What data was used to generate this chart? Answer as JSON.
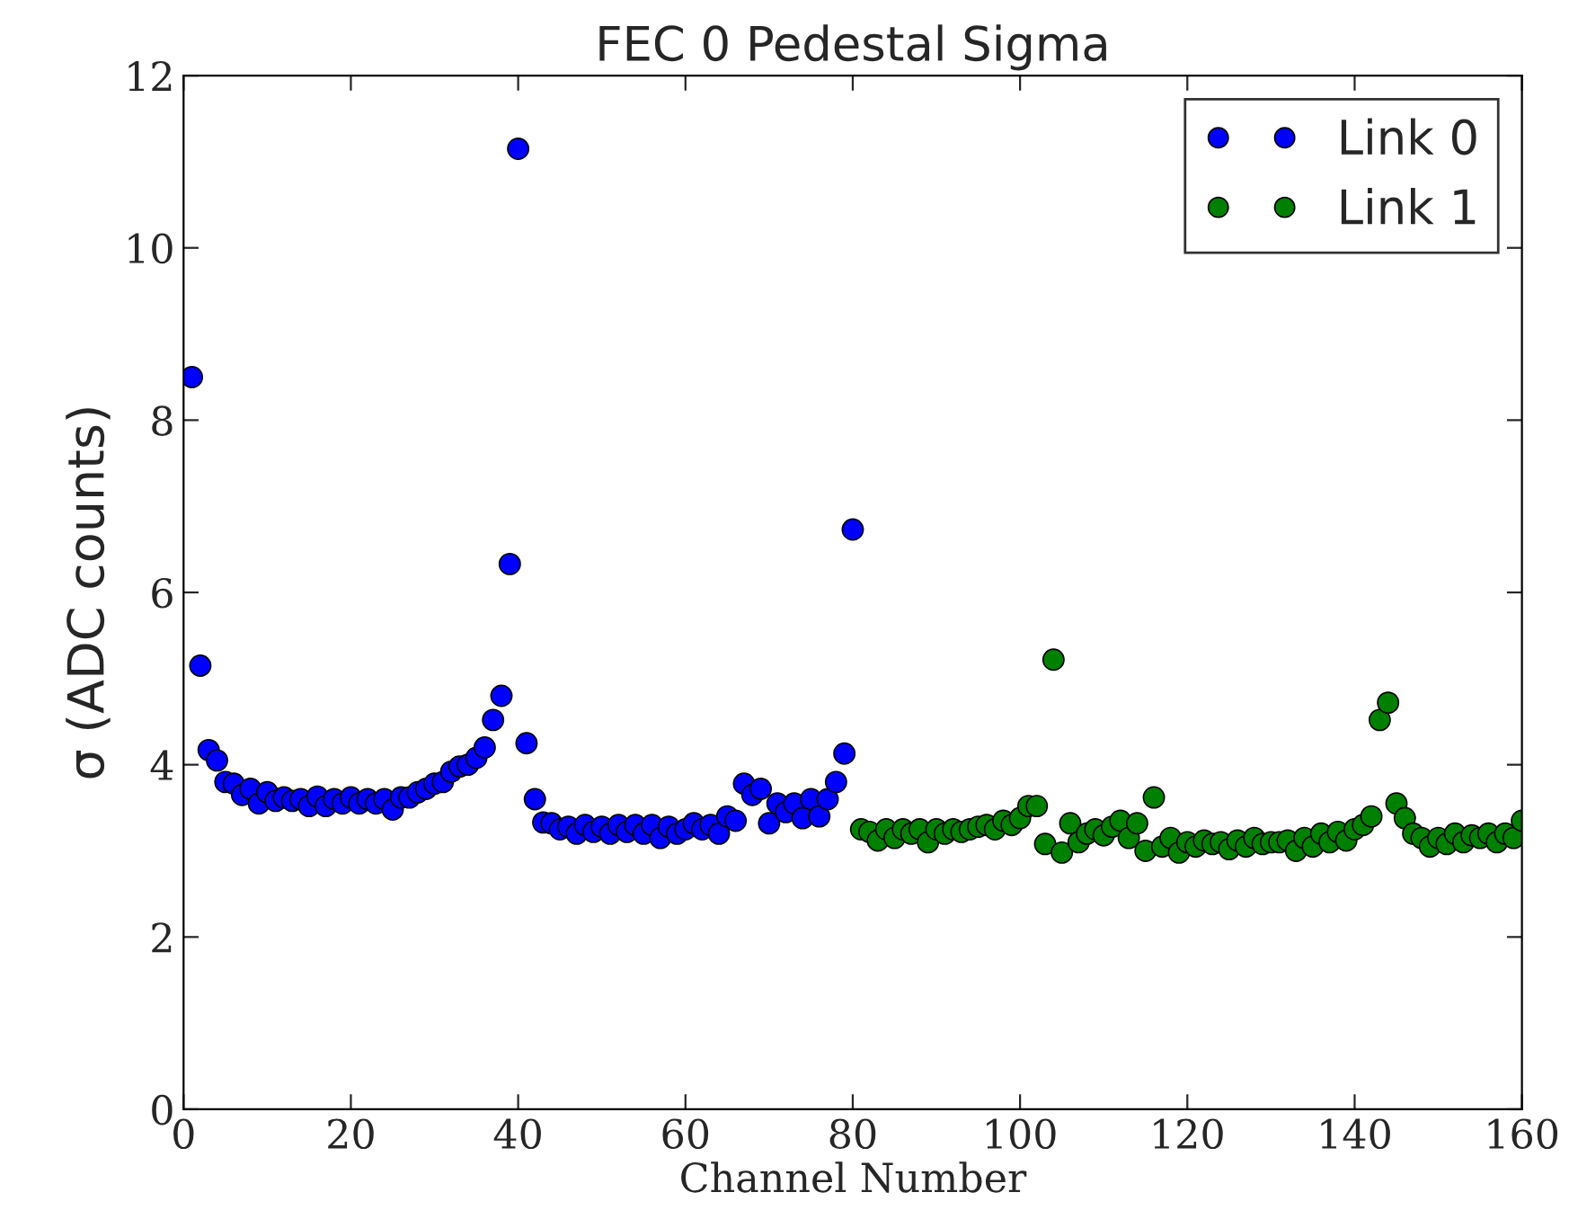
{
  "chart_data": {
    "type": "scatter",
    "title": "FEC 0 Pedestal Sigma",
    "xlabel": "Channel Number",
    "ylabel": "σ (ADC counts)",
    "xlim": [
      0,
      160
    ],
    "xticks": [
      0,
      20,
      40,
      60,
      80,
      100,
      120,
      140,
      160
    ],
    "ylim": [
      0,
      12
    ],
    "yticks": [
      0,
      2,
      4,
      6,
      8,
      10,
      12
    ],
    "grid": false,
    "legend": "top right",
    "marker": "circle",
    "series": [
      {
        "name": "Link 0",
        "color": "#0000ff",
        "x": [
          1,
          2,
          3,
          4,
          5,
          6,
          7,
          8,
          9,
          10,
          11,
          12,
          13,
          14,
          15,
          16,
          17,
          18,
          19,
          20,
          21,
          22,
          23,
          24,
          25,
          26,
          27,
          28,
          29,
          30,
          31,
          32,
          33,
          34,
          35,
          36,
          37,
          38,
          39,
          40,
          41,
          42,
          43,
          44,
          45,
          46,
          47,
          48,
          49,
          50,
          51,
          52,
          53,
          54,
          55,
          56,
          57,
          58,
          59,
          60,
          61,
          62,
          63,
          64,
          65,
          66,
          67,
          68,
          69,
          70,
          71,
          72,
          73,
          74,
          75,
          76,
          77,
          78,
          79,
          80
        ],
        "values": [
          8.5,
          5.15,
          4.17,
          4.05,
          3.8,
          3.78,
          3.65,
          3.72,
          3.55,
          3.68,
          3.58,
          3.62,
          3.58,
          3.6,
          3.52,
          3.63,
          3.52,
          3.6,
          3.55,
          3.62,
          3.55,
          3.6,
          3.55,
          3.6,
          3.48,
          3.62,
          3.62,
          3.68,
          3.72,
          3.78,
          3.8,
          3.92,
          3.98,
          4.0,
          4.08,
          4.2,
          4.52,
          4.8,
          6.33,
          11.15,
          4.25,
          3.6,
          3.33,
          3.32,
          3.25,
          3.28,
          3.2,
          3.3,
          3.22,
          3.28,
          3.2,
          3.3,
          3.22,
          3.3,
          3.2,
          3.3,
          3.15,
          3.28,
          3.2,
          3.25,
          3.32,
          3.25,
          3.3,
          3.2,
          3.4,
          3.35,
          3.78,
          3.65,
          3.72,
          3.32,
          3.55,
          3.45,
          3.55,
          3.38,
          3.6,
          3.4,
          3.6,
          3.8,
          4.13,
          6.73
        ]
      },
      {
        "name": "Link 1",
        "color": "#008000",
        "x": [
          81,
          82,
          83,
          84,
          85,
          86,
          87,
          88,
          89,
          90,
          91,
          92,
          93,
          94,
          95,
          96,
          97,
          98,
          99,
          100,
          101,
          102,
          103,
          104,
          105,
          106,
          107,
          108,
          109,
          110,
          111,
          112,
          113,
          114,
          115,
          116,
          117,
          118,
          119,
          120,
          121,
          122,
          123,
          124,
          125,
          126,
          127,
          128,
          129,
          130,
          131,
          132,
          133,
          134,
          135,
          136,
          137,
          138,
          139,
          140,
          141,
          142,
          143,
          144,
          145,
          146,
          147,
          148,
          149,
          150,
          151,
          152,
          153,
          154,
          155,
          156,
          157,
          158,
          159,
          160
        ],
        "values": [
          3.25,
          3.22,
          3.12,
          3.25,
          3.15,
          3.25,
          3.2,
          3.25,
          3.1,
          3.25,
          3.2,
          3.25,
          3.22,
          3.25,
          3.28,
          3.3,
          3.25,
          3.35,
          3.3,
          3.38,
          3.52,
          3.52,
          3.08,
          5.22,
          2.98,
          3.32,
          3.1,
          3.2,
          3.25,
          3.18,
          3.28,
          3.35,
          3.15,
          3.32,
          3.0,
          3.62,
          3.05,
          3.15,
          2.98,
          3.1,
          3.05,
          3.12,
          3.08,
          3.1,
          3.02,
          3.12,
          3.05,
          3.15,
          3.08,
          3.1,
          3.1,
          3.12,
          3.0,
          3.15,
          3.05,
          3.2,
          3.1,
          3.22,
          3.12,
          3.25,
          3.3,
          3.4,
          4.52,
          4.72,
          3.55,
          3.38,
          3.2,
          3.15,
          3.05,
          3.15,
          3.08,
          3.2,
          3.1,
          3.18,
          3.15,
          3.2,
          3.1,
          3.2,
          3.15,
          3.35
        ]
      }
    ]
  }
}
